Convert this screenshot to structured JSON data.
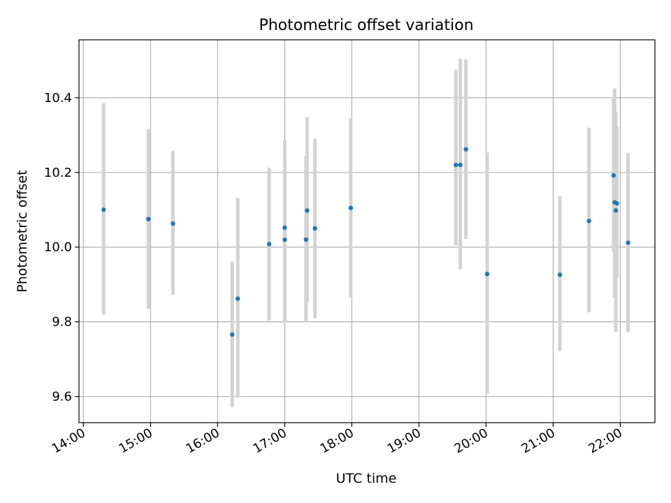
{
  "chart_data": {
    "type": "scatter",
    "title": "Photometric offset variation",
    "xlabel": "UTC time",
    "ylabel": "Photometric offset",
    "x_tick_labels": [
      "14:00",
      "15:00",
      "16:00",
      "17:00",
      "18:00",
      "19:00",
      "20:00",
      "21:00",
      "22:00"
    ],
    "y_tick_labels": [
      "9.6",
      "9.8",
      "10.0",
      "10.2",
      "10.4"
    ],
    "xlim": [
      "13:56",
      "22:31"
    ],
    "ylim": [
      9.53,
      10.555
    ],
    "grid": true,
    "colors": {
      "points": "#1f77b4",
      "errorbars": "#d3d3d3",
      "grid": "#b0b0b0",
      "axes": "#000000"
    },
    "points": [
      {
        "time": "14:18",
        "value": 10.1,
        "err_low": 0.28,
        "err_high": 0.285
      },
      {
        "time": "14:58",
        "value": 10.075,
        "err_low": 0.24,
        "err_high": 0.24
      },
      {
        "time": "15:20",
        "value": 10.063,
        "err_low": 0.19,
        "err_high": 0.195
      },
      {
        "time": "16:13",
        "value": 9.766,
        "err_low": 0.195,
        "err_high": 0.195
      },
      {
        "time": "16:18",
        "value": 9.862,
        "err_low": 0.265,
        "err_high": 0.27
      },
      {
        "time": "16:46",
        "value": 10.008,
        "err_low": 0.205,
        "err_high": 0.205
      },
      {
        "time": "17:00",
        "value": 10.052,
        "err_low": 0.255,
        "err_high": 0.235
      },
      {
        "time": "17:00",
        "value": 10.02,
        "err_low": 0.22,
        "err_high": 0.225
      },
      {
        "time": "17:19",
        "value": 10.02,
        "err_low": 0.22,
        "err_high": 0.225
      },
      {
        "time": "17:20",
        "value": 10.098,
        "err_low": 0.245,
        "err_high": 0.25
      },
      {
        "time": "17:27",
        "value": 10.05,
        "err_low": 0.24,
        "err_high": 0.24
      },
      {
        "time": "17:59",
        "value": 10.105,
        "err_low": 0.24,
        "err_high": 0.24
      },
      {
        "time": "19:33",
        "value": 10.22,
        "err_low": 0.215,
        "err_high": 0.255
      },
      {
        "time": "19:37",
        "value": 10.22,
        "err_low": 0.28,
        "err_high": 0.285
      },
      {
        "time": "19:42",
        "value": 10.262,
        "err_low": 0.24,
        "err_high": 0.24
      },
      {
        "time": "20:01",
        "value": 9.928,
        "err_low": 0.32,
        "err_high": 0.325
      },
      {
        "time": "21:06",
        "value": 9.926,
        "err_low": 0.205,
        "err_high": 0.21
      },
      {
        "time": "21:32",
        "value": 10.07,
        "err_low": 0.245,
        "err_high": 0.25
      },
      {
        "time": "21:54",
        "value": 10.192,
        "err_low": 0.205,
        "err_high": 0.205
      },
      {
        "time": "21:55",
        "value": 10.12,
        "err_low": 0.255,
        "err_high": 0.305
      },
      {
        "time": "21:56",
        "value": 10.098,
        "err_low": 0.325,
        "err_high": 0.265
      },
      {
        "time": "21:57",
        "value": 10.117,
        "err_low": 0.2,
        "err_high": 0.205
      },
      {
        "time": "22:07",
        "value": 10.012,
        "err_low": 0.24,
        "err_high": 0.24
      }
    ]
  }
}
